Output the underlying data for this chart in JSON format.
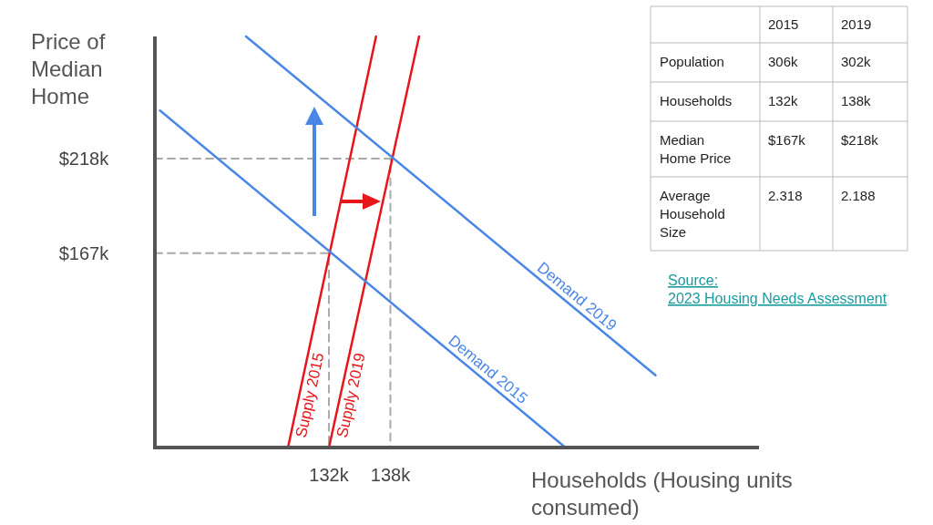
{
  "chart_data": [
    {
      "type": "line",
      "xlabel": "Households (Housing units consumed)",
      "ylabel": "Price of Median Home",
      "xlim": [
        115,
        174
      ],
      "ylim": [
        62,
        284
      ],
      "xticks": [
        {
          "value": 132,
          "label": "132k"
        },
        {
          "value": 138,
          "label": "138k"
        }
      ],
      "yticks": [
        {
          "value": 167,
          "label": "$167k"
        },
        {
          "value": 218,
          "label": "$218k"
        }
      ],
      "marker": "none",
      "line_style": "solid",
      "annotations": [
        "Source:\n2023 Housing Needs Assessment"
      ],
      "series": [
        {
          "type": "line",
          "color": "#aaaaaa",
          "line_style": "dashed",
          "x": [
            115,
            138,
            138
          ],
          "values": [
            218,
            218,
            62
          ]
        },
        {
          "type": "line",
          "color": "#aaaaaa",
          "line_style": "dashed",
          "x": [
            115,
            132,
            132
          ],
          "values": [
            167,
            167,
            62
          ]
        },
        {
          "type": "line",
          "name": "Supply 2015",
          "color": "#e8151b",
          "x": [
            128,
            136.6
          ],
          "values": [
            62,
            284
          ]
        },
        {
          "type": "line",
          "name": "Supply 2019",
          "color": "#e8151b",
          "x": [
            132,
            140.8
          ],
          "values": [
            62,
            284
          ]
        },
        {
          "type": "line",
          "name": "Demand 2015",
          "color": "#4a86e8",
          "x": [
            115.5,
            155.1
          ],
          "values": [
            244,
            62
          ]
        },
        {
          "type": "line",
          "name": "Demand 2019",
          "color": "#4a86e8",
          "x": [
            123.9,
            163.9
          ],
          "values": [
            284,
            101
          ]
        }
      ]
    },
    {
      "type": "other",
      "categories": [
        "2015",
        "2019"
      ],
      "y_categories": [
        "Population",
        "Households",
        "Median Home Price",
        "Average Household Size"
      ],
      "cell_labels": [
        [
          "306k",
          "302k"
        ],
        [
          "132k",
          "138k"
        ],
        [
          "$167k",
          "$218k"
        ],
        [
          "2.318",
          "2.188"
        ]
      ]
    }
  ]
}
